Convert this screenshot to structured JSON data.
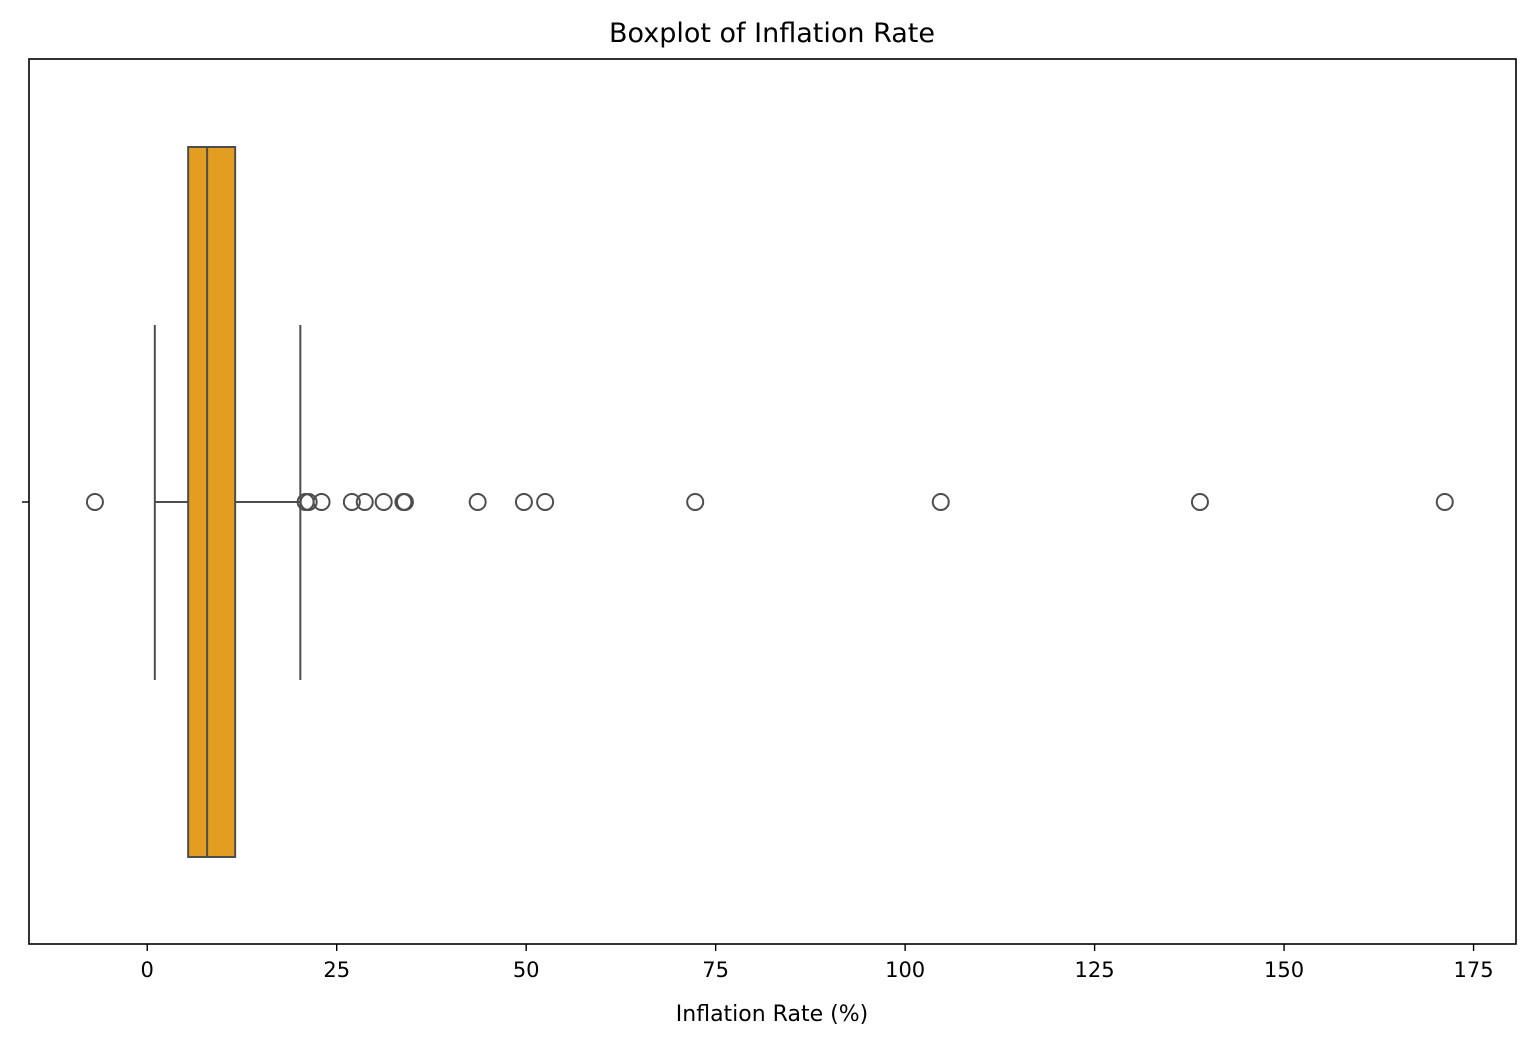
{
  "chart_data": {
    "type": "boxplot",
    "orientation": "horizontal",
    "title": "Boxplot of Inflation Rate",
    "xlabel": "Inflation Rate (%)",
    "ylabel": "",
    "xlim": [
      -15.6,
      180.6
    ],
    "xticks": [
      0,
      25,
      50,
      75,
      100,
      125,
      150,
      175
    ],
    "xtick_labels": [
      "0",
      "25",
      "50",
      "75",
      "100",
      "125",
      "150",
      "175"
    ],
    "grid": false,
    "box": {
      "whisker_low": 1.0,
      "q1": 5.4,
      "median": 7.9,
      "q3": 11.6,
      "whisker_high": 20.2
    },
    "outliers": [
      -6.9,
      20.9,
      21.3,
      23.0,
      27.0,
      28.7,
      31.2,
      33.8,
      34.0,
      43.6,
      49.7,
      52.5,
      72.3,
      104.7,
      138.9,
      171.2
    ],
    "colors": {
      "box_fill": "#E39D20",
      "lines": "#4d4d4d"
    }
  }
}
